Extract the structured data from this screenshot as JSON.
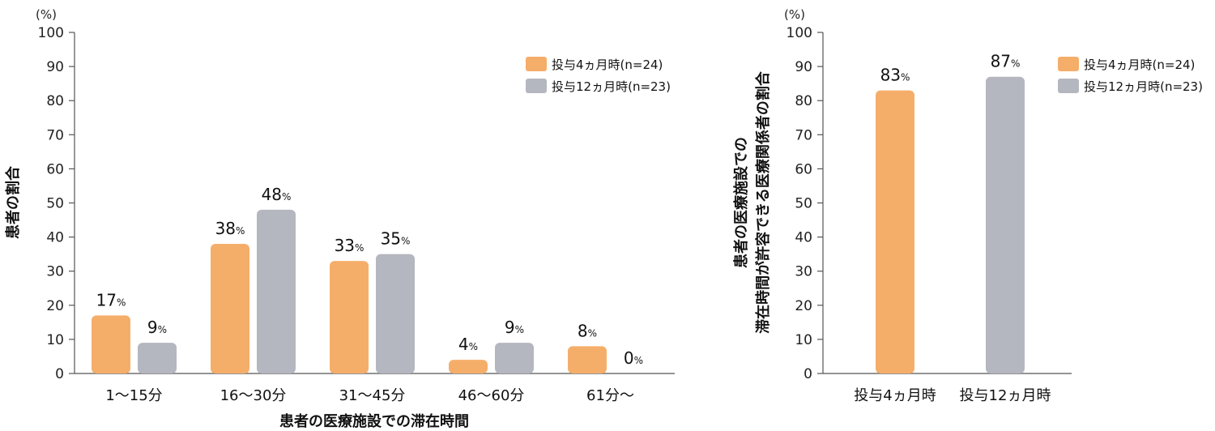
{
  "chart_data": [
    {
      "type": "bar",
      "title": "",
      "unit_label": "(%)",
      "xlabel": "患者の医療施設での滞在時間",
      "ylabel": "患者の割合",
      "ylim": [
        0,
        100
      ],
      "yticks": [
        0,
        10,
        20,
        30,
        40,
        50,
        60,
        70,
        80,
        90,
        100
      ],
      "categories": [
        "1～15分",
        "16～30分",
        "31～45分",
        "46～60分",
        "61分～"
      ],
      "series": [
        {
          "name": "投与4ヵ月時(n=24)",
          "color": "#F5AE6A",
          "values": [
            17,
            38,
            33,
            4,
            8
          ],
          "labels": [
            "17",
            "38",
            "33",
            "4",
            "8"
          ]
        },
        {
          "name": "投与12ヵ月時(n=23)",
          "color": "#B4B7C0",
          "values": [
            9,
            48,
            35,
            9,
            0
          ],
          "labels": [
            "9",
            "48",
            "35",
            "9",
            "0"
          ]
        }
      ],
      "value_suffix": "%",
      "legend": "top-right",
      "grid": false
    },
    {
      "type": "bar",
      "title": "",
      "unit_label": "(%)",
      "xlabel": "",
      "ylabel_lines": [
        "患者の医療施設での",
        "滞在時間が許容できる医療関係者の割合"
      ],
      "ylim": [
        0,
        100
      ],
      "yticks": [
        0,
        10,
        20,
        30,
        40,
        50,
        60,
        70,
        80,
        90,
        100
      ],
      "categories": [
        "投与4ヵ月時",
        "投与12ヵ月時"
      ],
      "values": [
        83,
        87
      ],
      "labels": [
        "83",
        "87"
      ],
      "colors": [
        "#F5AE6A",
        "#B4B7C0"
      ],
      "value_suffix": "%",
      "legend_entries": [
        {
          "name": "投与4ヵ月時(n=24)",
          "color": "#F5AE6A"
        },
        {
          "name": "投与12ヵ月時(n=23)",
          "color": "#B4B7C0"
        }
      ],
      "legend": "top-right",
      "grid": false
    }
  ]
}
